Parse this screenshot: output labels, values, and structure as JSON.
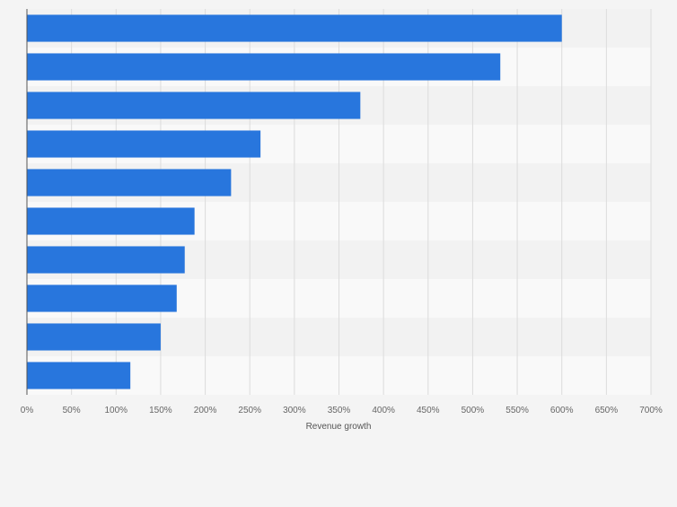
{
  "chart_data": {
    "type": "bar",
    "orientation": "horizontal",
    "title": "",
    "xlabel": "Revenue growth",
    "ylabel": "",
    "categories": [
      "",
      "",
      "",
      "",
      "",
      "",
      "",
      "",
      "",
      ""
    ],
    "values": [
      600,
      531,
      374,
      262,
      229,
      188,
      177,
      168,
      150,
      116
    ],
    "xlim": [
      0,
      700
    ],
    "xticks": [
      0,
      50,
      100,
      150,
      200,
      250,
      300,
      350,
      400,
      450,
      500,
      550,
      600,
      650,
      700
    ],
    "tick_suffix": "%",
    "grid": true,
    "bar_color": "#2876dd"
  }
}
